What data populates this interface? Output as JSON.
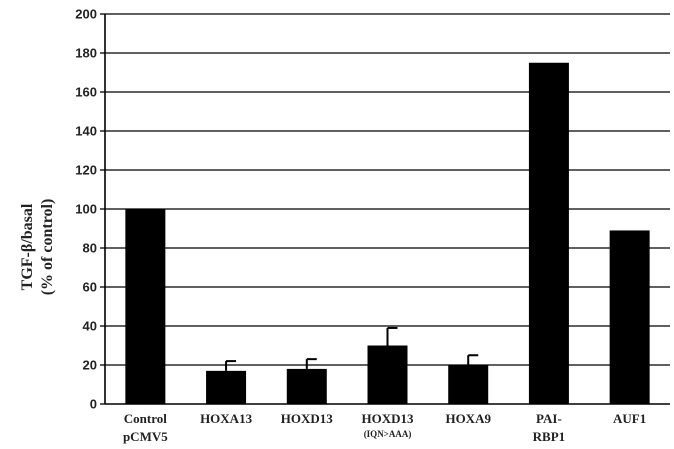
{
  "chart_data": {
    "type": "bar",
    "title": "",
    "xlabel": "",
    "ylabel": "TGF-β/basal",
    "ylabel_sub": "(% of control)",
    "ylim": [
      0,
      200
    ],
    "y_ticks": [
      0,
      20,
      40,
      60,
      80,
      100,
      120,
      140,
      160,
      180,
      200
    ],
    "grid": true,
    "bar_color": "#000000",
    "categories": [
      {
        "line1": "Control",
        "line2": "pCMV5"
      },
      {
        "line1": "HOXA13",
        "line2": ""
      },
      {
        "line1": "HOXD13",
        "line2": ""
      },
      {
        "line1": "HOXD13",
        "line2": "(IQN>AAA)"
      },
      {
        "line1": "HOXA9",
        "line2": ""
      },
      {
        "line1": "PAI-",
        "line2": "RBP1"
      },
      {
        "line1": "AUF1",
        "line2": ""
      }
    ],
    "values": [
      100,
      17,
      18,
      30,
      20,
      175,
      89
    ],
    "error": [
      0,
      5,
      5,
      9,
      5,
      0,
      0
    ]
  }
}
